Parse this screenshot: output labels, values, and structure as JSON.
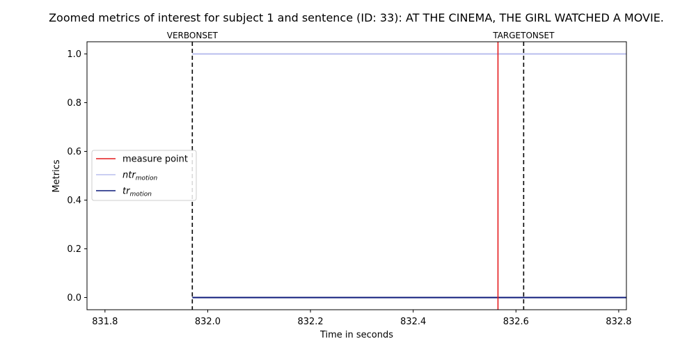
{
  "chart_data": {
    "type": "line",
    "title": "Zoomed metrics of interest for subject 1 and sentence (ID: 33): AT THE CINEMA, THE GIRL WATCHED A MOVIE.",
    "xlabel": "Time in seconds",
    "ylabel": "Metrics",
    "xlim": [
      831.765,
      832.815
    ],
    "ylim": [
      -0.05,
      1.05
    ],
    "xticks": [
      "831.8",
      "832.0",
      "832.2",
      "832.4",
      "832.6",
      "832.8"
    ],
    "xtick_values": [
      831.8,
      832.0,
      832.2,
      832.4,
      832.6,
      832.8
    ],
    "yticks": [
      "0.0",
      "0.2",
      "0.4",
      "0.6",
      "0.8",
      "1.0"
    ],
    "ytick_values": [
      0.0,
      0.2,
      0.4,
      0.6,
      0.8,
      1.0
    ],
    "grid": false,
    "legend_placement": "center-left",
    "series": [
      {
        "name": "ntr",
        "subscript": "motion",
        "color": "#b8bdee",
        "x": [
          831.97,
          832.815
        ],
        "y": [
          1.0,
          1.0
        ]
      },
      {
        "name": "tr",
        "subscript": "motion",
        "color": "#0c1a7a",
        "x": [
          831.97,
          832.815
        ],
        "y": [
          0.0,
          0.0
        ]
      }
    ],
    "measure_point": {
      "label": "measure point",
      "x": 832.565,
      "color": "#e41a1c"
    },
    "annotations": [
      {
        "label": "VERBONSET",
        "x": 831.97
      },
      {
        "label": "TARGETONSET",
        "x": 832.615
      }
    ]
  }
}
